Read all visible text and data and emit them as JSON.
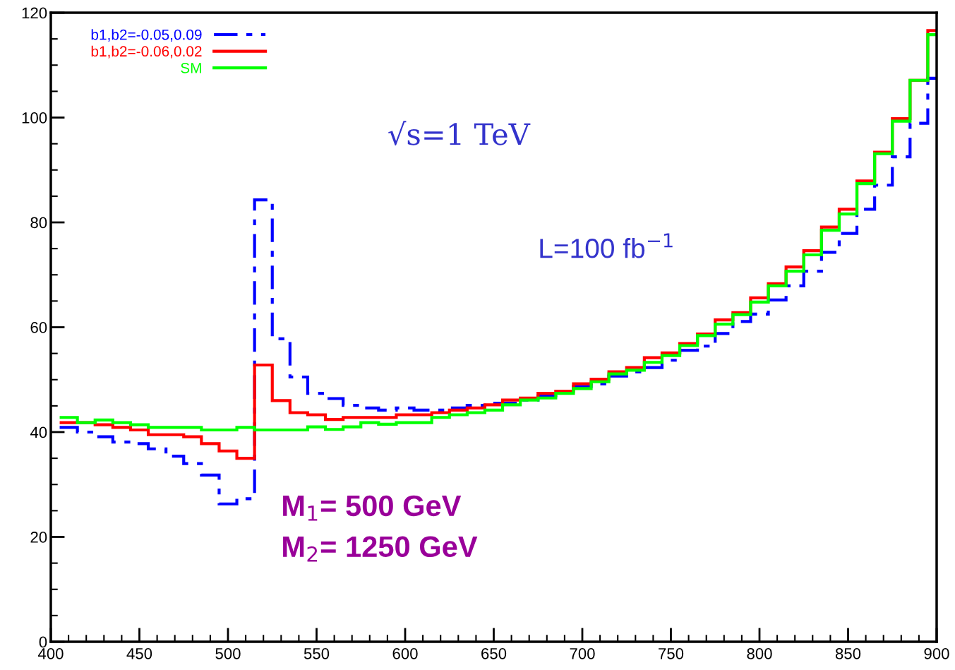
{
  "chart_data": {
    "type": "histogram",
    "bins": [
      405,
      415,
      425,
      435,
      445,
      455,
      465,
      475,
      485,
      495,
      505,
      515,
      525,
      535,
      545,
      555,
      565,
      575,
      585,
      595,
      605,
      615,
      625,
      635,
      645,
      655,
      665,
      675,
      685,
      695,
      705,
      715,
      725,
      735,
      745,
      755,
      765,
      775,
      785,
      795,
      805,
      815,
      825,
      835,
      845,
      855,
      865,
      875,
      885,
      895,
      900
    ],
    "series": [
      {
        "name": "b1,b2=-0.05,0.09",
        "color": "#0000ff",
        "line_style": "dashed",
        "values": [
          40.9,
          40.0,
          39.1,
          38.1,
          37.8,
          36.8,
          35.4,
          34.0,
          31.8,
          26.3,
          27.3,
          84.3,
          57.8,
          50.5,
          47.4,
          46.4,
          45.1,
          44.6,
          44.2,
          44.6,
          44.2,
          44.2,
          44.6,
          45.1,
          45.5,
          45.5,
          46.1,
          46.9,
          47.6,
          48.7,
          49.2,
          50.7,
          51.5,
          52.3,
          53.7,
          55.6,
          56.4,
          58.8,
          61.1,
          62.5,
          65.2,
          67.9,
          70.7,
          74.3,
          77.9,
          82.5,
          87.1,
          92.5,
          98.9,
          107.5
        ]
      },
      {
        "name": "b1,b2=-0.06,0.02",
        "color": "#ff0000",
        "line_style": "solid",
        "values": [
          41.8,
          41.8,
          41.4,
          40.9,
          40.4,
          39.5,
          39.5,
          39.1,
          37.8,
          36.4,
          35.0,
          52.8,
          46.0,
          43.7,
          43.3,
          42.4,
          42.8,
          42.8,
          42.8,
          43.3,
          43.3,
          43.7,
          44.2,
          44.6,
          45.2,
          46.1,
          46.5,
          47.4,
          47.8,
          49.2,
          50.1,
          51.5,
          52.3,
          54.2,
          55.1,
          56.9,
          58.7,
          61.4,
          62.8,
          65.6,
          68.3,
          71.5,
          74.6,
          79.1,
          82.5,
          87.9,
          93.4,
          99.8,
          107.1,
          116.6
        ]
      },
      {
        "name": "SM",
        "color": "#00ff00",
        "line_style": "solid",
        "values": [
          42.8,
          41.8,
          42.3,
          41.8,
          41.4,
          40.9,
          40.9,
          40.9,
          40.4,
          40.4,
          40.9,
          40.4,
          40.4,
          40.4,
          41.0,
          40.5,
          41.0,
          41.8,
          41.5,
          41.8,
          41.8,
          42.8,
          43.3,
          43.7,
          44.2,
          45.2,
          46.1,
          46.5,
          47.4,
          48.3,
          49.6,
          51.1,
          51.8,
          53.3,
          54.6,
          56.5,
          58.4,
          60.6,
          62.4,
          64.8,
          67.9,
          70.7,
          73.8,
          78.5,
          81.6,
          87.4,
          93.1,
          99.3,
          107.1,
          115.8
        ]
      }
    ],
    "xlim": [
      400,
      900
    ],
    "xticks": [
      400,
      450,
      500,
      550,
      600,
      650,
      700,
      750,
      800,
      850,
      900
    ],
    "ylim": [
      0,
      120
    ],
    "yticks": [
      0,
      20,
      40,
      60,
      80,
      100,
      120
    ],
    "grid": false,
    "legend": "top left",
    "annotations": [
      "√s=1 TeV",
      "L=100 fb$^{−1}$",
      "M$_{1}$= 500 GeV",
      "M$_{2}$= 1250 GeV"
    ]
  }
}
